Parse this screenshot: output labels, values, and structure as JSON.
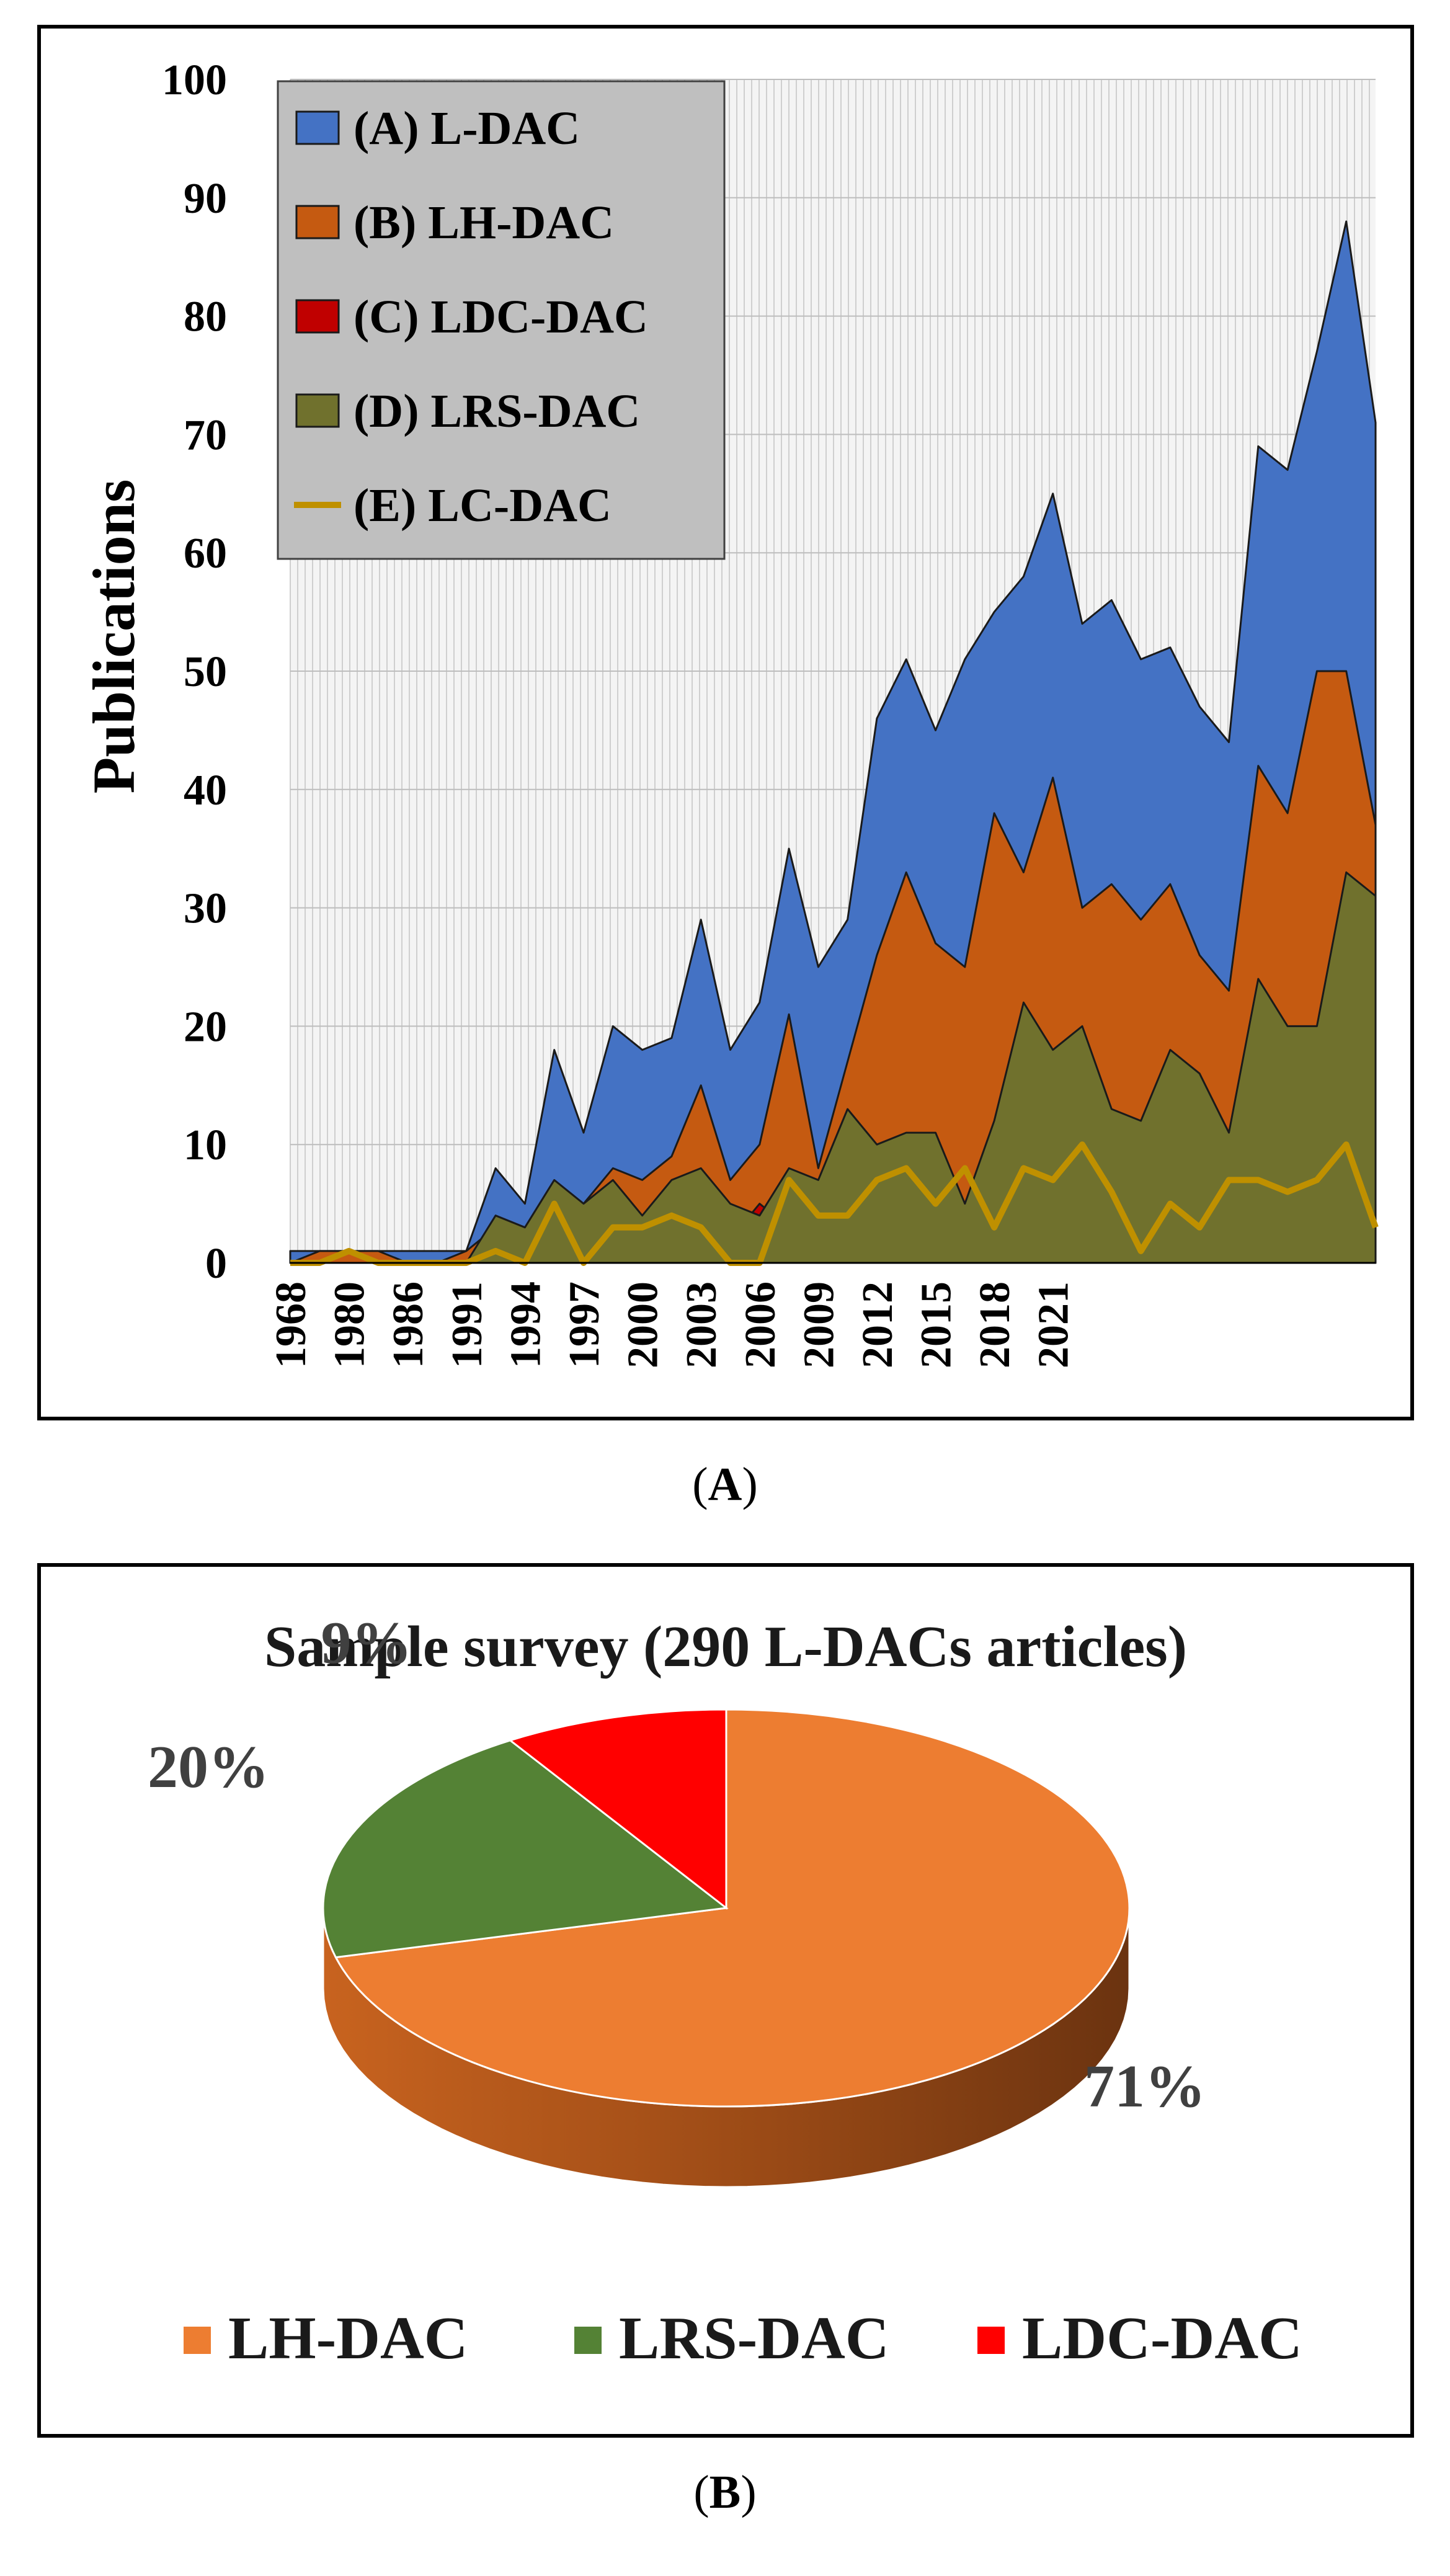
{
  "panel_a_caption": {
    "open": "(",
    "letter": "A",
    "close": ")"
  },
  "panel_b_caption": {
    "open": "(",
    "letter": "B",
    "close": ")"
  },
  "chart_data": [
    {
      "type": "area",
      "title": "",
      "xlabel": "",
      "ylabel": "Publications",
      "ylim": [
        0,
        100
      ],
      "yticks": [
        0,
        10,
        20,
        30,
        40,
        50,
        60,
        70,
        80,
        90,
        100
      ],
      "xtick_labels": [
        "1968",
        "1980",
        "1986",
        "1991",
        "1994",
        "1997",
        "2000",
        "2003",
        "2006",
        "2009",
        "2012",
        "2015",
        "2018",
        "2021"
      ],
      "xtick_index": [
        0,
        2,
        4,
        6,
        8,
        10,
        12,
        14,
        16,
        18,
        20,
        22,
        24,
        26
      ],
      "x": [
        "1968",
        "1979",
        "1980",
        "1983",
        "1986",
        "1989",
        "1990",
        "1991",
        "1992",
        "1993",
        "1994",
        "1995",
        "1996",
        "1997",
        "1998",
        "1999",
        "2000",
        "2001",
        "2002",
        "2003",
        "2004",
        "2005",
        "2006",
        "2007",
        "2008",
        "2009",
        "2010",
        "2011",
        "2012",
        "2013",
        "2014",
        "2015",
        "2016",
        "2017",
        "2018",
        "2019",
        "2020",
        "2021"
      ],
      "grid": true,
      "legend_position": "top-left",
      "series": [
        {
          "name": "(A) L-DAC",
          "kind": "area",
          "color": "#4472C4",
          "values": [
            1,
            1,
            1,
            1,
            1,
            1,
            1,
            8,
            5,
            18,
            11,
            20,
            18,
            19,
            29,
            18,
            22,
            35,
            25,
            29,
            46,
            51,
            45,
            51,
            55,
            58,
            65,
            54,
            56,
            51,
            52,
            47,
            44,
            69,
            67,
            77,
            88,
            71
          ]
        },
        {
          "name": "(B) LH-DAC",
          "kind": "area",
          "color": "#C55A11",
          "values": [
            0,
            1,
            1,
            1,
            0,
            0,
            1,
            3,
            3,
            6,
            5,
            8,
            7,
            9,
            15,
            7,
            10,
            21,
            8,
            17,
            26,
            33,
            27,
            25,
            38,
            33,
            41,
            30,
            32,
            29,
            32,
            26,
            23,
            42,
            38,
            50,
            50,
            37
          ]
        },
        {
          "name": "(C) LDC-DAC",
          "kind": "area",
          "color": "#C00000",
          "values": [
            0,
            0,
            0,
            0,
            0,
            0,
            0,
            0,
            0,
            1,
            0,
            1,
            0,
            4,
            4,
            2,
            5,
            3,
            6,
            6,
            7,
            8,
            8,
            5,
            8,
            7,
            8,
            7,
            9,
            8,
            8,
            7,
            6,
            8,
            9,
            10,
            14,
            15
          ]
        },
        {
          "name": "(D) LRS-DAC",
          "kind": "area",
          "color": "#70712D",
          "values": [
            0,
            0,
            0,
            0,
            0,
            0,
            0,
            4,
            3,
            7,
            5,
            7,
            4,
            7,
            8,
            5,
            4,
            8,
            7,
            13,
            10,
            11,
            11,
            5,
            12,
            22,
            18,
            20,
            13,
            12,
            18,
            16,
            11,
            24,
            20,
            20,
            33,
            31
          ]
        },
        {
          "name": "(E) LC-DAC",
          "kind": "line",
          "color": "#BF9000",
          "values": [
            0,
            0,
            1,
            0,
            0,
            0,
            0,
            1,
            0,
            5,
            0,
            3,
            3,
            4,
            3,
            0,
            0,
            7,
            4,
            4,
            7,
            8,
            5,
            8,
            3,
            8,
            7,
            10,
            6,
            1,
            5,
            3,
            7,
            7,
            6,
            7,
            10,
            3
          ]
        }
      ]
    },
    {
      "type": "pie",
      "title": "Sample survey (290 L-DACs articles)",
      "categories": [
        "LH-DAC",
        "LRS-DAC",
        "LDC-DAC"
      ],
      "values": [
        71,
        20,
        9
      ],
      "labels": [
        "71%",
        "20%",
        "9%"
      ],
      "colors": [
        "#ED7D31",
        "#548235",
        "#FF0000"
      ],
      "legend_position": "bottom"
    }
  ]
}
